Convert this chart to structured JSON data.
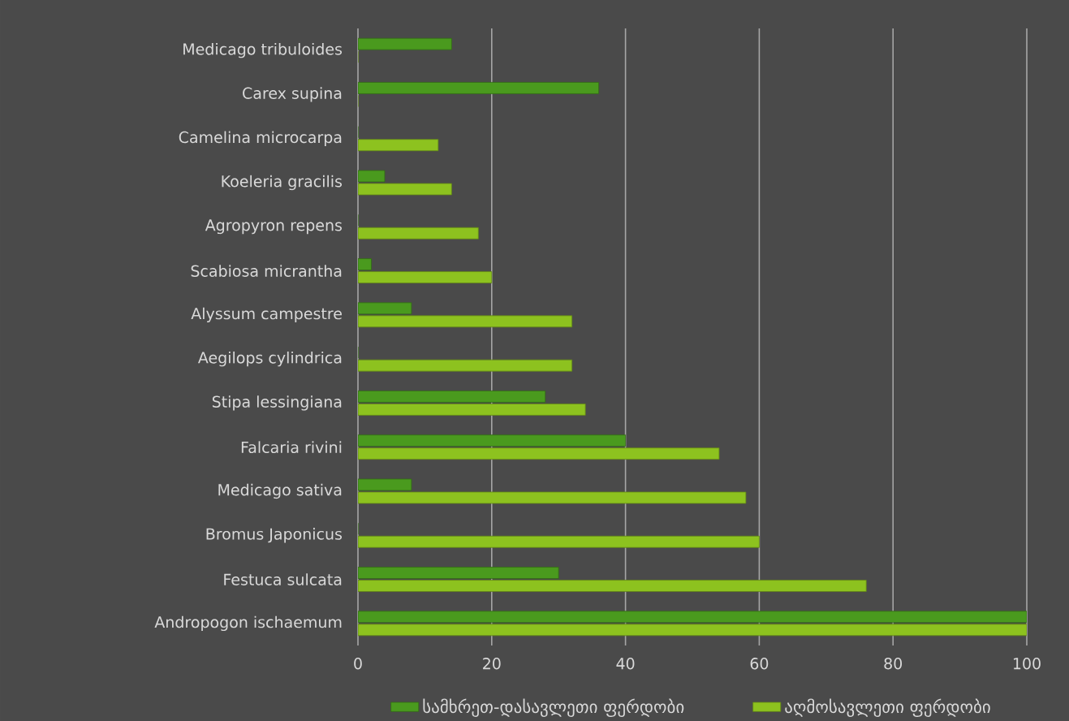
{
  "chart_data": {
    "type": "bar",
    "orientation": "horizontal",
    "categories": [
      "Medicago tribuloides",
      "Carex supina",
      "Camelina microcarpa",
      "Koeleria gracilis",
      "Agropyron repens",
      "Scabiosa micrantha",
      "Alyssum campestre",
      "Aegilops cylindrica",
      "Stipa lessingiana",
      "Falcaria rivini",
      "Medicago sativa",
      "Bromus Japonicus",
      "Festuca sulcata",
      "Andropogon ischaemum"
    ],
    "series": [
      {
        "name": "სამხრეთ-დასავლეთი ფერდობი",
        "color": "#4a9a1e",
        "values": [
          14,
          36,
          0,
          4,
          0,
          2,
          8,
          0,
          28,
          40,
          8,
          0,
          30,
          100
        ]
      },
      {
        "name": "აღმოსავლეთი ფერდობი",
        "color": "#8dc21f",
        "values": [
          0,
          0,
          12,
          14,
          18,
          20,
          32,
          32,
          34,
          54,
          58,
          60,
          76,
          100
        ]
      }
    ],
    "xlim": [
      0,
      100
    ],
    "xticks": [
      0,
      20,
      40,
      60,
      80,
      100
    ],
    "grid": "x",
    "legend": "bottom"
  }
}
